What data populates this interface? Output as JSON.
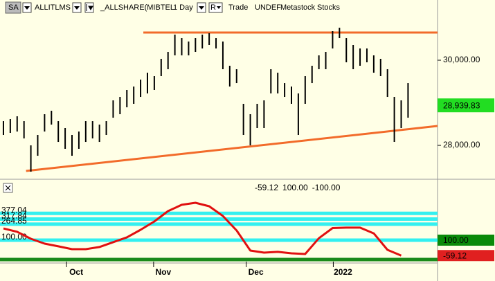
{
  "toolbar": {
    "symbol_box": "SA",
    "symbol": "ALLITLMS",
    "security": "_ALLSHARE(MIBTEL",
    "period": "1 Day",
    "mode": "R",
    "price_type": "Trade",
    "currency": "UNDEF",
    "source": "Metastock",
    "category": "Stocks"
  },
  "chart_data": [
    {
      "type": "ohlc",
      "xlim": [
        -0.5,
        63.3
      ],
      "ylim": [
        27220,
        31057
      ],
      "yticks": [
        {
          "value": 30000,
          "label": "30,000.00"
        },
        {
          "value": 28000,
          "label": "28,000.00"
        }
      ],
      "xticks": [
        {
          "value": 9.2,
          "label": "Oct"
        },
        {
          "value": 21.9,
          "label": "Nov"
        },
        {
          "value": 35.4,
          "label": "Dec"
        },
        {
          "value": 48.1,
          "label": "2022"
        }
      ],
      "high": [
        28569,
        28618,
        28683,
        28569,
        28000,
        28244,
        28732,
        28813,
        28569,
        28407,
        28244,
        28325,
        28569,
        28569,
        28488,
        28569,
        29057,
        29138,
        29301,
        29382,
        29545,
        29707,
        29626,
        30033,
        30195,
        30602,
        30520,
        30439,
        30520,
        30602,
        30634,
        30520,
        30439,
        29870,
        29789,
        28976,
        28732,
        28976,
        29057,
        29789,
        29707,
        29463,
        29382,
        29220,
        29626,
        29870,
        30114,
        30195,
        30683,
        30764,
        30520,
        30358,
        30276,
        30276,
        30114,
        30033,
        29789,
        29138,
        29057,
        29463
      ],
      "low": [
        28244,
        28293,
        28325,
        28163,
        27382,
        27756,
        28325,
        28488,
        28081,
        27919,
        27756,
        27919,
        28081,
        28163,
        28081,
        28244,
        28650,
        28732,
        28894,
        28976,
        29138,
        29220,
        29301,
        29626,
        29789,
        30114,
        30114,
        30114,
        30195,
        30276,
        30358,
        30276,
        29789,
        29382,
        29463,
        28244,
        28000,
        28407,
        28407,
        29220,
        29220,
        29138,
        28976,
        28244,
        28976,
        29463,
        29789,
        29789,
        30276,
        30520,
        29951,
        29789,
        29870,
        29951,
        29707,
        29626,
        29138,
        28081,
        28407,
        28650
      ],
      "color": "#000000",
      "last_value": {
        "value": 28939.83,
        "label": "28,939.83"
      },
      "last_color": "#22dd22",
      "trendlines": [
        {
          "x": [
            20.4,
            63.3
          ],
          "y": [
            30650,
            30650
          ],
          "color": "#f26b2a"
        },
        {
          "x": [
            3.3,
            63.3
          ],
          "y": [
            27398,
            28455
          ],
          "color": "#f26b2a"
        }
      ]
    },
    {
      "type": "line",
      "xlim": [
        -0.5,
        63.3
      ],
      "ylim": [
        -136,
        543
      ],
      "x": [
        0,
        2,
        4,
        6,
        8,
        10,
        12,
        14,
        16,
        18,
        20,
        22,
        24,
        26,
        28,
        30,
        32,
        34,
        36,
        38,
        40,
        42,
        44,
        46,
        48,
        50,
        52,
        54,
        56,
        58
      ],
      "values": [
        221,
        186,
        114,
        64,
        36,
        7,
        7,
        29,
        79,
        129,
        207,
        293,
        400,
        465,
        486,
        450,
        350,
        200,
        -7,
        -29,
        -21,
        -36,
        -43,
        120,
        225,
        229,
        229,
        170,
        0,
        -59.12
      ],
      "color": "#e01010",
      "header_values": [
        {
          "value": -59.12,
          "label": "-59.12",
          "color": "#cc1111"
        },
        {
          "value": 100,
          "label": "100.00",
          "color": "#118811"
        },
        {
          "value": -100,
          "label": "-100.00",
          "color": "#991111"
        }
      ],
      "levels": [
        377.04,
        317.84,
        264.85,
        {
          "value": 100,
          "label": "100.00"
        }
      ],
      "level_color": "#33f0f0",
      "baseline": -100,
      "baseline_color": "#1a8a1a",
      "last_value": {
        "value": -59.12,
        "label": "-59.12"
      },
      "last_color": "#e02020",
      "level_box_color": "#0a8a0a"
    }
  ]
}
